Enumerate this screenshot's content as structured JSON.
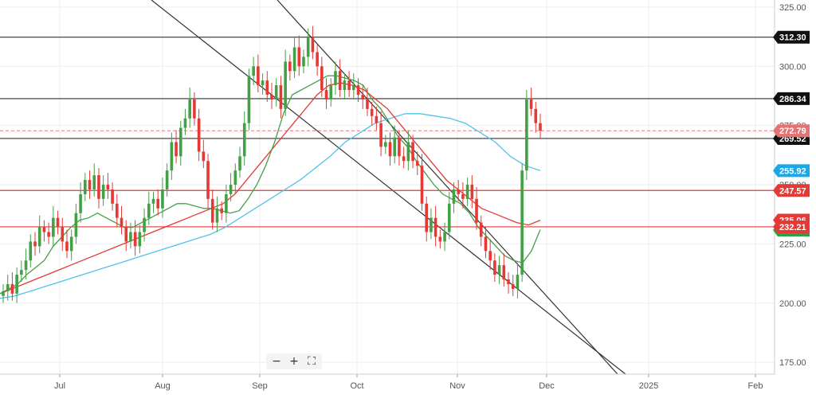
{
  "chart_data": {
    "type": "candlestick",
    "y_axis": {
      "range": [
        170,
        328
      ],
      "ticks": [
        "325.00",
        "300.00",
        "275.00",
        "250.00",
        "225.00",
        "200.00",
        "175.00"
      ],
      "tick_values": [
        325,
        300,
        275,
        250,
        225,
        200,
        175
      ]
    },
    "x_axis": {
      "labels": [
        "Jul",
        "Aug",
        "Sep",
        "Oct",
        "Nov",
        "Dec",
        "2025",
        "Feb"
      ]
    },
    "horizontal_lines": [
      {
        "value": 312.3,
        "color": "#333333",
        "label": "312.30"
      },
      {
        "value": 286.34,
        "color": "#333333",
        "label": "286.34"
      },
      {
        "value": 269.52,
        "color": "#333333",
        "label": "269.52"
      },
      {
        "value": 247.57,
        "color": "#e53935",
        "label": "247.57"
      },
      {
        "value": 232.21,
        "color": "#e53935",
        "label": "232.21"
      }
    ],
    "last_price": {
      "value": 272.79,
      "color": "#e57373",
      "label": "272.79"
    },
    "indicator_badges": [
      {
        "value": 255.92,
        "color": "#1ba8e8",
        "label": "255.92"
      },
      {
        "value": 235.06,
        "color": "#e53935",
        "label": "235.06"
      },
      {
        "value": 230.8,
        "color": "#2e9e49",
        "label": ""
      }
    ],
    "candles_close": [
      205,
      208,
      204,
      212,
      214,
      218,
      226,
      224,
      232,
      230,
      228,
      236,
      232,
      226,
      222,
      228,
      238,
      246,
      252,
      248,
      254,
      244,
      250,
      248,
      242,
      236,
      232,
      226,
      230,
      224,
      230,
      236,
      242,
      244,
      240,
      248,
      256,
      268,
      262,
      274,
      278,
      286,
      278,
      264,
      260,
      244,
      234,
      240,
      238,
      246,
      250,
      256,
      262,
      276,
      296,
      300,
      292,
      294,
      288,
      286,
      292,
      282,
      302,
      298,
      308,
      300,
      304,
      312,
      306,
      300,
      290,
      286,
      292,
      298,
      290,
      294,
      290,
      292,
      288,
      286,
      282,
      279,
      276,
      266,
      268,
      262,
      270,
      262,
      260,
      268,
      260,
      258,
      242,
      230,
      236,
      228,
      226,
      230,
      242,
      248,
      246,
      244,
      250,
      244,
      234,
      228,
      222,
      218,
      212,
      216,
      210,
      208,
      206,
      212,
      256,
      286,
      282,
      276,
      272.79
    ],
    "ema_green": [
      204,
      206,
      208,
      212,
      215,
      218,
      224,
      228,
      232,
      235,
      236,
      238,
      236,
      234,
      232,
      232,
      234,
      236,
      238,
      240,
      242,
      242,
      241,
      240,
      240,
      239,
      238,
      239,
      244,
      250,
      258,
      268,
      280,
      288,
      290,
      292,
      294,
      296,
      296,
      295,
      294,
      292,
      286,
      282,
      276,
      270,
      266,
      260,
      255,
      250,
      246,
      244,
      242,
      238,
      232,
      228,
      224,
      220,
      218,
      217,
      222,
      231
    ],
    "ema_red": [
      204,
      206,
      208,
      210,
      212,
      214,
      216,
      218,
      220,
      222,
      224,
      226,
      228,
      230,
      232,
      234,
      236,
      238,
      240,
      242,
      246,
      252,
      258,
      264,
      270,
      276,
      282,
      288,
      292,
      293,
      292,
      290,
      286,
      282,
      276,
      270,
      264,
      258,
      252,
      248,
      244,
      240,
      238,
      236,
      234,
      233,
      235
    ],
    "sma_blue": [
      202,
      203,
      205,
      207,
      209,
      211,
      213,
      215,
      217,
      219,
      221,
      223,
      225,
      227,
      229,
      232,
      236,
      240,
      244,
      248,
      252,
      257,
      262,
      268,
      272,
      276,
      278,
      280,
      280,
      279,
      278,
      276,
      272,
      268,
      262,
      258,
      256
    ]
  }
}
